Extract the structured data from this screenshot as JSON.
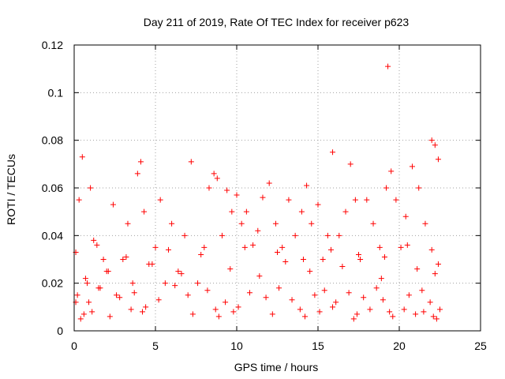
{
  "chart_data": {
    "type": "scatter",
    "title": "Day 211 of 2019, Rate Of TEC Index for receiver p623",
    "xlabel": "GPS time / hours",
    "ylabel": "ROTI / TECUs",
    "xlim": [
      0,
      25
    ],
    "ylim": [
      0,
      0.12
    ],
    "xticks": [
      0,
      5,
      10,
      15,
      20,
      25
    ],
    "xtick_labels": [
      "0",
      "5",
      "10",
      "15",
      "20",
      "25"
    ],
    "yticks": [
      0,
      0.02,
      0.04,
      0.06,
      0.08,
      0.1,
      0.12
    ],
    "ytick_labels": [
      "0",
      "0.02",
      "0.04",
      "0.06",
      "0.08",
      "0.1",
      "0.12"
    ],
    "grid": true,
    "marker": "plus",
    "color": "#ff0000",
    "series": [
      {
        "x": [
          0.1,
          0.3,
          0.5,
          0.8,
          1.0,
          1.2,
          1.5,
          1.8,
          2.1,
          2.4,
          2.6,
          3.0,
          3.3,
          3.6,
          3.9,
          4.1,
          4.3,
          4.6,
          5.0,
          5.3,
          5.6,
          6.0,
          6.4,
          6.8,
          7.2,
          7.6,
          8.0,
          8.3,
          8.6,
          8.8,
          9.1,
          9.4,
          9.7,
          10.0,
          10.3,
          10.6,
          11.0,
          11.3,
          11.6,
          12.0,
          12.4,
          12.8,
          13.2,
          13.6,
          14.0,
          14.3,
          14.6,
          15.0,
          15.3,
          15.6,
          15.9,
          16.3,
          16.7,
          17.0,
          17.3,
          17.6,
          18.0,
          18.4,
          18.8,
          19.2,
          19.5,
          19.8,
          20.1,
          20.4,
          20.8,
          21.2,
          21.6,
          22.0,
          22.2,
          22.4,
          0.4,
          0.6,
          1.1,
          2.2,
          3.5,
          4.4,
          4.2,
          7.3,
          8.7,
          8.9,
          9.8,
          10.1,
          12.2,
          13.9,
          14.2,
          15.1,
          15.9,
          17.2,
          17.4,
          18.2,
          19.3,
          19.4,
          19.6,
          20.3,
          21.0,
          21.5,
          22.1,
          22.3,
          0.2,
          0.9,
          1.6,
          2.8,
          3.7,
          5.2,
          6.2,
          7.0,
          8.2,
          9.3,
          10.8,
          11.8,
          12.6,
          13.4,
          14.8,
          15.4,
          16.1,
          16.9,
          17.8,
          18.6,
          19.0,
          20.6,
          21.4,
          21.9,
          22.5,
          0.7,
          2.0,
          4.8,
          6.6,
          9.6,
          11.4,
          13.0,
          14.5,
          16.5,
          18.9,
          21.1,
          22.2,
          22.4,
          0.1,
          1.4,
          3.2,
          5.8,
          7.8,
          10.5,
          12.5,
          14.1,
          15.8,
          17.5,
          19.1,
          20.5,
          22.0
        ],
        "y": [
          0.012,
          0.055,
          0.073,
          0.02,
          0.06,
          0.038,
          0.018,
          0.03,
          0.025,
          0.053,
          0.015,
          0.03,
          0.045,
          0.02,
          0.066,
          0.071,
          0.05,
          0.028,
          0.035,
          0.055,
          0.02,
          0.045,
          0.025,
          0.04,
          0.071,
          0.02,
          0.035,
          0.06,
          0.066,
          0.064,
          0.04,
          0.059,
          0.05,
          0.057,
          0.045,
          0.05,
          0.036,
          0.042,
          0.056,
          0.062,
          0.045,
          0.035,
          0.055,
          0.04,
          0.05,
          0.061,
          0.045,
          0.053,
          0.03,
          0.04,
          0.075,
          0.04,
          0.05,
          0.07,
          0.055,
          0.03,
          0.055,
          0.045,
          0.035,
          0.06,
          0.067,
          0.055,
          0.035,
          0.048,
          0.069,
          0.06,
          0.045,
          0.08,
          0.078,
          0.072,
          0.005,
          0.007,
          0.008,
          0.006,
          0.009,
          0.01,
          0.008,
          0.007,
          0.009,
          0.006,
          0.008,
          0.01,
          0.007,
          0.009,
          0.006,
          0.008,
          0.01,
          0.005,
          0.007,
          0.009,
          0.111,
          0.008,
          0.006,
          0.009,
          0.007,
          0.008,
          0.006,
          0.005,
          0.015,
          0.012,
          0.018,
          0.014,
          0.016,
          0.013,
          0.019,
          0.015,
          0.017,
          0.012,
          0.016,
          0.014,
          0.018,
          0.013,
          0.015,
          0.017,
          0.012,
          0.016,
          0.014,
          0.018,
          0.013,
          0.015,
          0.017,
          0.012,
          0.009,
          0.022,
          0.025,
          0.028,
          0.024,
          0.026,
          0.023,
          0.029,
          0.025,
          0.027,
          0.022,
          0.026,
          0.024,
          0.028,
          0.033,
          0.036,
          0.031,
          0.034,
          0.032,
          0.035,
          0.033,
          0.03,
          0.034,
          0.032,
          0.031,
          0.036,
          0.034
        ]
      }
    ]
  }
}
